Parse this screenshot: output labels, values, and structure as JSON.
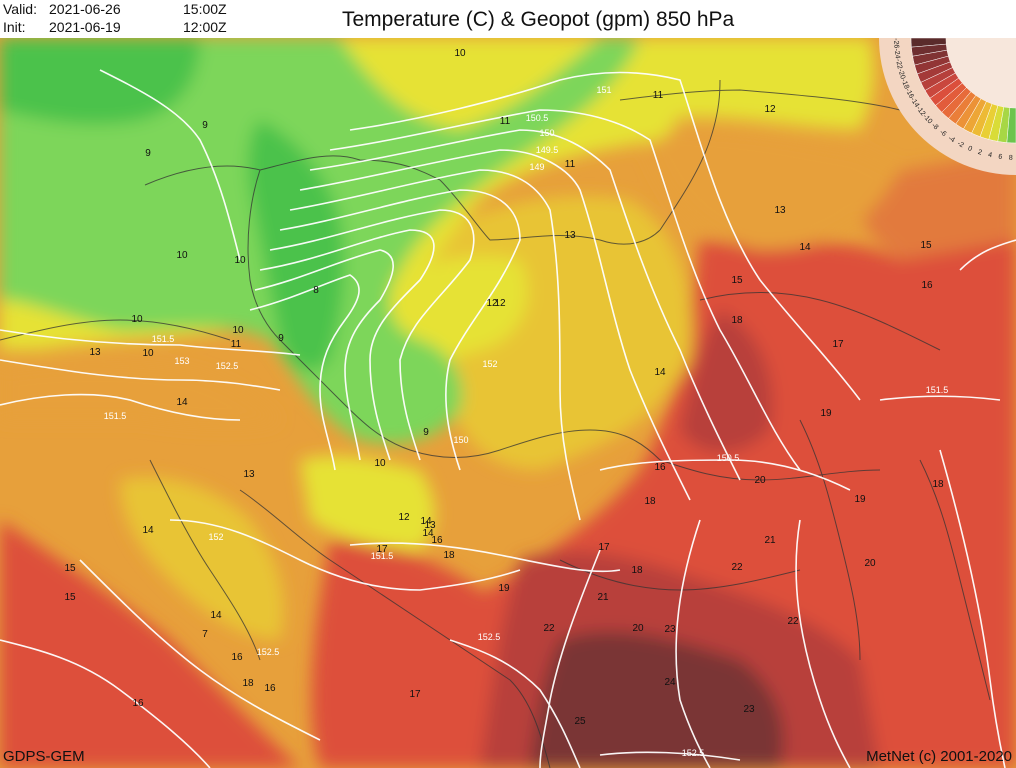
{
  "header": {
    "valid_label": "Valid:",
    "valid_date": "2021-06-26",
    "valid_time": "15:00Z",
    "init_label": "Init:",
    "init_date": "2021-06-19",
    "init_time": "12:00Z",
    "title": "Temperature (C) & Geopot (gpm) 850 hPa"
  },
  "footer": {
    "model": "GDPS-GEM",
    "credit": "MetNet (c) 2001-2020"
  },
  "colors": {
    "green_cold": "#4bc24b",
    "green_light": "#7dd65a",
    "yellow": "#e6e236",
    "yellow_orange": "#e8c435",
    "orange": "#e7a03b",
    "orange_red": "#e27a3c",
    "red": "#dd4f3b",
    "dark_red": "#b8413b",
    "very_dark_red": "#7a3534",
    "contour": "#ffffff",
    "border": "#333333"
  },
  "temperature_labels": [
    {
      "text": "10"
    },
    {
      "text": "9"
    },
    {
      "text": "9"
    },
    {
      "text": "10"
    },
    {
      "text": "10"
    },
    {
      "text": "10"
    },
    {
      "text": "11"
    },
    {
      "text": "12"
    },
    {
      "text": "13"
    },
    {
      "text": "13"
    },
    {
      "text": "14"
    },
    {
      "text": "15"
    },
    {
      "text": "16"
    },
    {
      "text": "15"
    },
    {
      "text": "18"
    },
    {
      "text": "17"
    },
    {
      "text": "14"
    },
    {
      "text": "19"
    },
    {
      "text": "16"
    },
    {
      "text": "20"
    },
    {
      "text": "18"
    },
    {
      "text": "19"
    },
    {
      "text": "20"
    },
    {
      "text": "21"
    },
    {
      "text": "22"
    },
    {
      "text": "22"
    },
    {
      "text": "23"
    },
    {
      "text": "24"
    },
    {
      "text": "23"
    },
    {
      "text": "25"
    },
    {
      "text": "18"
    },
    {
      "text": "17"
    },
    {
      "text": "16"
    },
    {
      "text": "12"
    },
    {
      "text": "14"
    },
    {
      "text": "13"
    },
    {
      "text": "16"
    },
    {
      "text": "18"
    },
    {
      "text": "17"
    },
    {
      "text": "19"
    },
    {
      "text": "18"
    },
    {
      "text": "21"
    },
    {
      "text": "20"
    },
    {
      "text": "22"
    },
    {
      "text": "17"
    },
    {
      "text": "16"
    },
    {
      "text": "16"
    },
    {
      "text": "18"
    },
    {
      "text": "15"
    },
    {
      "text": "14"
    },
    {
      "text": "14"
    },
    {
      "text": "13"
    },
    {
      "text": "15"
    },
    {
      "text": "14"
    },
    {
      "text": "12"
    },
    {
      "text": "11"
    },
    {
      "text": "11"
    },
    {
      "text": "10"
    },
    {
      "text": "10"
    },
    {
      "text": "8"
    },
    {
      "text": "9"
    },
    {
      "text": "7"
    },
    {
      "text": "10"
    },
    {
      "text": "9"
    },
    {
      "text": "11"
    },
    {
      "text": "12"
    },
    {
      "text": "13"
    },
    {
      "text": "14"
    }
  ],
  "geopot_labels": [
    {
      "text": "151"
    },
    {
      "text": "150.5"
    },
    {
      "text": "150"
    },
    {
      "text": "149.5"
    },
    {
      "text": "149"
    },
    {
      "text": "151.5"
    },
    {
      "text": "152.5"
    },
    {
      "text": "153"
    },
    {
      "text": "152"
    },
    {
      "text": "151.5"
    },
    {
      "text": "151.5"
    },
    {
      "text": "152.5"
    },
    {
      "text": "152.5"
    },
    {
      "text": "150.5"
    },
    {
      "text": "151.5"
    },
    {
      "text": "152"
    },
    {
      "text": "152.5"
    },
    {
      "text": "150"
    }
  ],
  "legend": {
    "scale_labels": [
      "-26",
      "-24",
      "-22",
      "-20",
      "-18",
      "-16",
      "-14",
      "-12",
      "-10",
      "-8",
      "-6",
      "-4",
      "-2",
      "0",
      "2",
      "4",
      "6",
      "8"
    ]
  }
}
